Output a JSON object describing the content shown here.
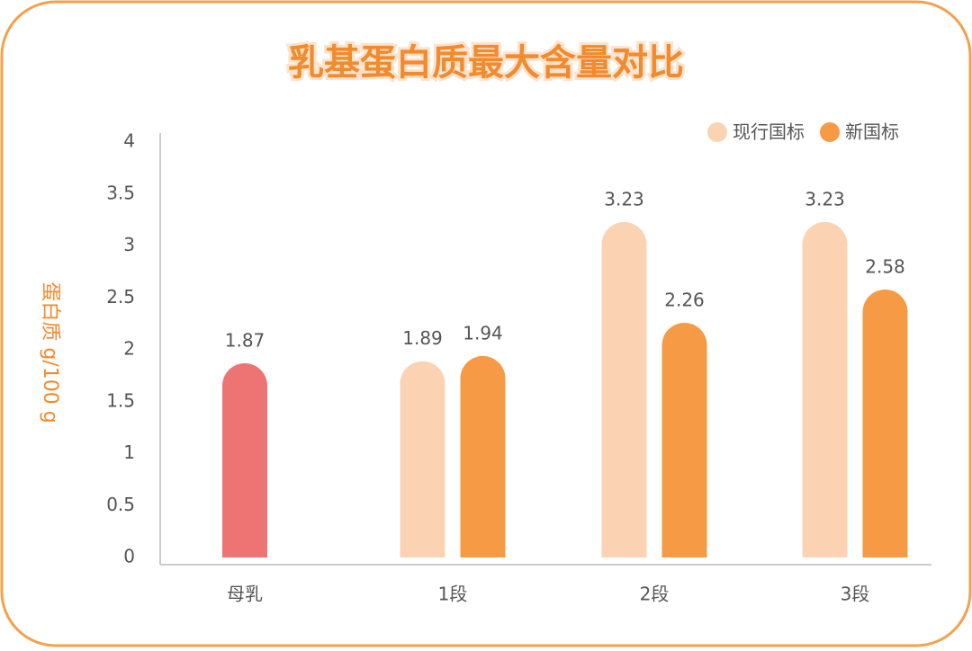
{
  "chart_data": {
    "type": "bar",
    "title": "乳基蛋白质最大含量对比",
    "y_label": "蛋白质 g/100 g",
    "categories": [
      "母乳",
      "1段",
      "2段",
      "3段"
    ],
    "series": [
      {
        "name": "现行国标",
        "color": "#fbd3b3",
        "colors": [
          "#ee7373",
          "#fbd3b3",
          "#fbd3b3",
          "#fbd3b3"
        ],
        "values": [
          1.87,
          1.89,
          3.23,
          3.23
        ]
      },
      {
        "name": "新国标",
        "color": "#f79a45",
        "values": [
          null,
          1.94,
          2.26,
          2.58
        ]
      }
    ],
    "ylim": [
      0,
      4
    ],
    "yticks": [
      0,
      0.5,
      1,
      1.5,
      2,
      2.5,
      3,
      3.5,
      4
    ],
    "legend": "top-right",
    "grid": false
  }
}
